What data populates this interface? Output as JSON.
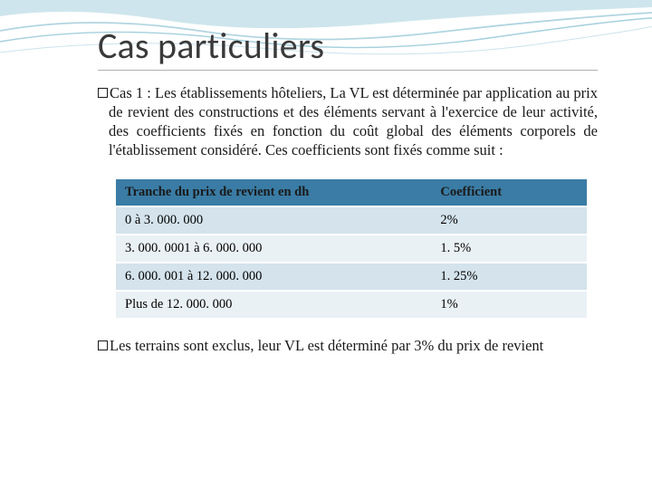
{
  "title": "Cas particuliers",
  "paragraph1": "Cas 1 : Les établissements hôteliers, La VL est déterminée par application au prix de revient des constructions et des éléments servant à l'exercice de leur activité, des coefficients fixés en fonction du coût global des éléments corporels de l'établissement considéré. Ces coefficients sont fixés comme suit :",
  "paragraph2": "Les terrains sont exclus, leur VL est déterminé par 3% du prix de revient",
  "table": {
    "columns": [
      "Tranche du prix de revient en dh",
      "Coefficient"
    ],
    "rows": [
      [
        "0 à 3. 000. 000",
        "2%"
      ],
      [
        "3. 000. 0001 à 6. 000. 000",
        "1. 5%"
      ],
      [
        "6. 000. 001 à 12. 000. 000",
        "1. 25%"
      ],
      [
        "Plus de 12. 000. 000",
        "1%"
      ]
    ],
    "header_bg": "#3a7ca5",
    "header_color": "#1a1a1a",
    "row_odd_bg": "#d4e3ec",
    "row_even_bg": "#eaf1f5",
    "col_widths": [
      "67%",
      "33%"
    ]
  },
  "colors": {
    "wave1": "#c5e0ea",
    "wave2": "#a9d0dd",
    "wave3": "#8fc4d5",
    "title_color": "#3a3a3a",
    "text_color": "#1a1a1a",
    "underline": "#b0b0b0",
    "bg": "#ffffff"
  },
  "fonts": {
    "title_size": 40,
    "body_size": 16.5,
    "table_size": 14.5
  }
}
